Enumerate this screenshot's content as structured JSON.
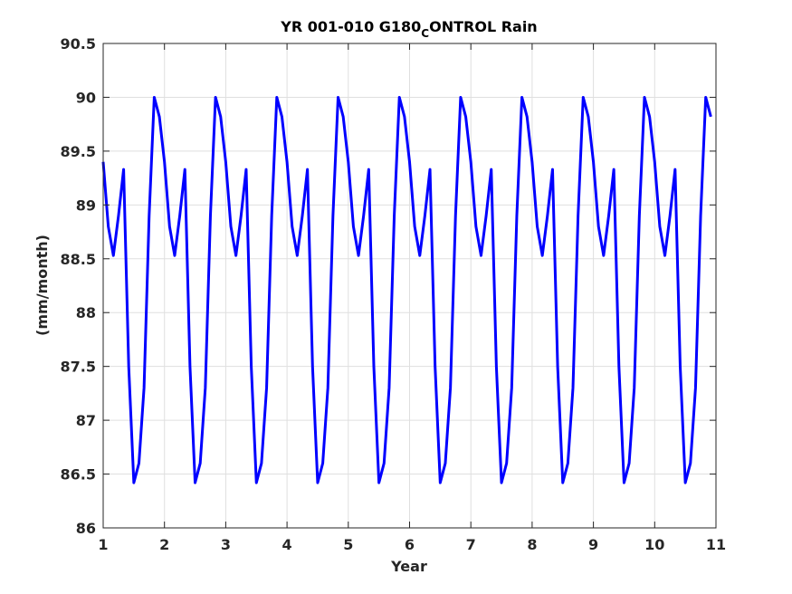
{
  "chart_data": {
    "type": "line",
    "title_main": "YR 001-010 G180",
    "title_sub": "C",
    "title_rest": "ONTROL Rain",
    "xlabel": "Year",
    "ylabel": "(mm/month)",
    "xlim": [
      1,
      11
    ],
    "ylim": [
      86,
      90.5
    ],
    "xticks": [
      1,
      2,
      3,
      4,
      5,
      6,
      7,
      8,
      9,
      10,
      11
    ],
    "xtick_labels": [
      "1",
      "2",
      "3",
      "4",
      "5",
      "6",
      "7",
      "8",
      "9",
      "10",
      "11"
    ],
    "yticks": [
      86,
      86.5,
      87,
      87.5,
      88,
      88.5,
      89,
      89.5,
      90,
      90.5
    ],
    "ytick_labels": [
      "86",
      "86.5",
      "87",
      "87.5",
      "88",
      "88.5",
      "89",
      "89.5",
      "90",
      "90.5"
    ],
    "grid": true,
    "line_color": "#0000ff",
    "series": [
      {
        "monthly_cycle": [
          89.4,
          88.8,
          88.53,
          88.9,
          89.33,
          87.5,
          86.42,
          86.6,
          87.3,
          88.9,
          90.0,
          89.82
        ],
        "x_start": 1.0,
        "x_step": 0.08333,
        "years": 10
      }
    ]
  },
  "colors": {
    "axis": "#262626",
    "grid": "#dfdfdf",
    "background": "#ffffff"
  }
}
